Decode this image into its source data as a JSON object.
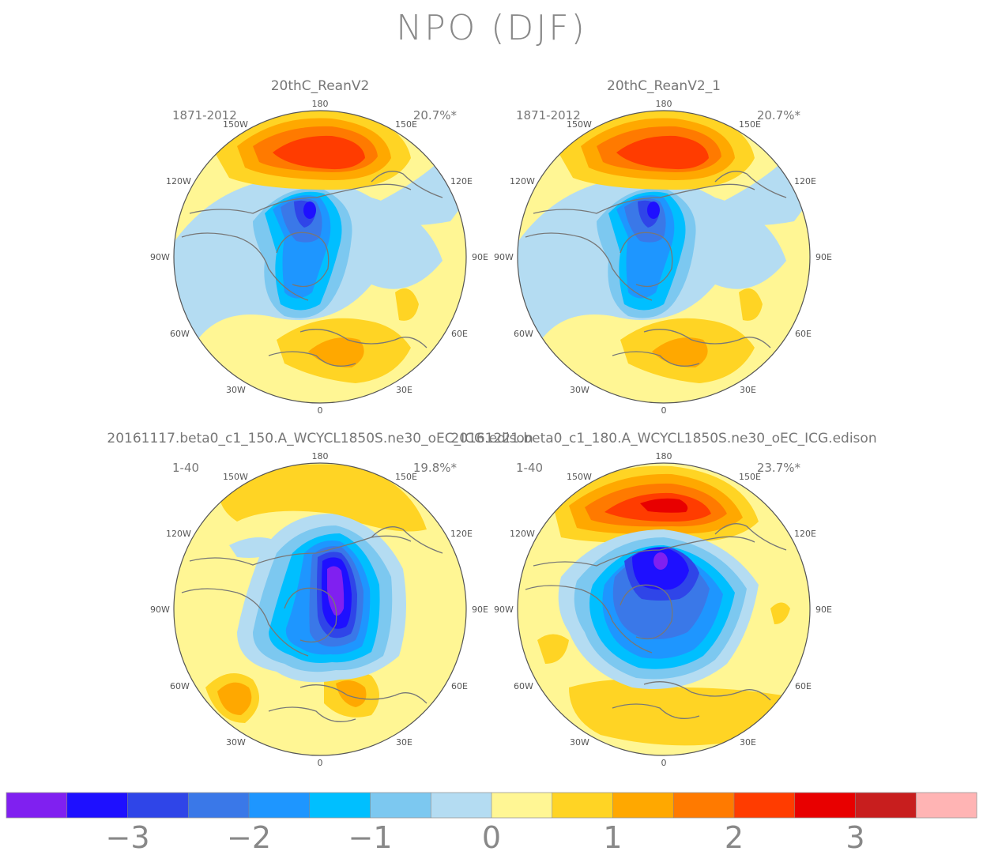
{
  "title": "NPO (DJF)",
  "panels": [
    {
      "name": "20thC_ReanV2",
      "period": "1871-2012",
      "variance": "20.7%*"
    },
    {
      "name": "20thC_ReanV2_1",
      "period": "1871-2012",
      "variance": "20.7%*"
    },
    {
      "name": "20161117.beta0_c1_150.A_WCYCL1850S.ne30_oEC_ICG.edison",
      "period": "1-40",
      "variance": "19.8%*"
    },
    {
      "name": "20161221.beta0_c1_180.A_WCYCL1850S.ne30_oEC_ICG.edison",
      "period": "1-40",
      "variance": "23.7%*"
    }
  ],
  "longitude_labels": [
    "180",
    "150W",
    "150E",
    "120W",
    "120E",
    "90W",
    "90E",
    "60W",
    "60E",
    "30W",
    "30E",
    "0"
  ],
  "colorbar": {
    "colors": [
      "#8020f0",
      "#1e10ff",
      "#2f45e8",
      "#3a78e8",
      "#1e96ff",
      "#00bfff",
      "#7cc8f0",
      "#b4dcf2",
      "#fff694",
      "#ffd424",
      "#ffa800",
      "#ff7a00",
      "#ff3c00",
      "#e80000",
      "#c81e1e",
      "#ffb4b4"
    ],
    "tick_labels": [
      "−3",
      "−2",
      "−1",
      "0",
      "1",
      "2",
      "3"
    ]
  },
  "legend": {
    "color_scale": "blue negative, red positive"
  }
}
